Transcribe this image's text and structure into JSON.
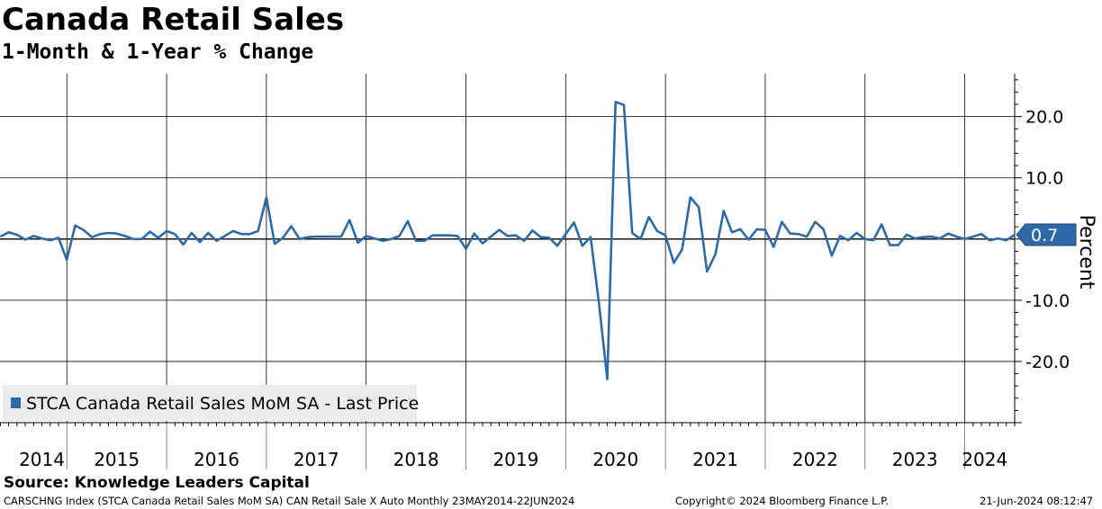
{
  "title": "Canada Retail Sales",
  "subtitle": "1-Month & 1-Year % Change",
  "source": "Source: Knowledge Leaders Capital",
  "footer": {
    "left": "CARSCHNG Index (STCA Canada Retail Sales MoM SA) CAN Retail Sale X Auto  Monthly 23MAY2014-22JUN2024",
    "center": "Copyright© 2024 Bloomberg Finance L.P.",
    "right": "21-Jun-2024 08:12:47"
  },
  "colors": {
    "series": "#2e6aa8",
    "grid": "#000000",
    "legend_bg": "#ececec"
  },
  "chart_data": {
    "type": "line",
    "title": "Canada Retail Sales",
    "subtitle": "1-Month & 1-Year % Change",
    "ylabel": "Percent",
    "ylim": [
      -30,
      27
    ],
    "yticks": [
      20,
      10,
      0,
      -10,
      -20
    ],
    "ytick_labels": [
      "20.0",
      "10.0",
      "",
      "-10.0",
      "-20.0"
    ],
    "xlim": [
      2014.33,
      2024.5
    ],
    "year_labels": [
      "2014",
      "2015",
      "2016",
      "2017",
      "2018",
      "2019",
      "2020",
      "2021",
      "2022",
      "2023",
      "2024"
    ],
    "year_label_x": [
      2014.75,
      2015.5,
      2016.5,
      2017.5,
      2018.5,
      2019.5,
      2020.5,
      2021.5,
      2022.5,
      2023.5,
      2024.2
    ],
    "year_boundaries": [
      2015,
      2016,
      2017,
      2018,
      2019,
      2020,
      2021,
      2022,
      2023,
      2024
    ],
    "legend": "STCA Canada Retail Sales MoM SA - Last Price",
    "last_value": 0.7,
    "last_value_label": "0.7",
    "series": [
      {
        "name": "STCA Canada Retail Sales MoM SA - Last Price",
        "start": "2014-05",
        "values": [
          0.4,
          1.1,
          0.7,
          -0.1,
          0.5,
          0.1,
          -0.2,
          0.2,
          -3.4,
          2.2,
          1.5,
          0.3,
          0.8,
          1.0,
          0.9,
          0.5,
          0.0,
          0.0,
          1.2,
          0.2,
          1.3,
          0.8,
          -0.9,
          1.0,
          -0.5,
          1.0,
          -0.3,
          0.5,
          1.3,
          0.8,
          0.8,
          1.3,
          6.8,
          -0.8,
          0.2,
          2.1,
          0.0,
          0.3,
          0.4,
          0.4,
          0.4,
          0.4,
          3.1,
          -0.6,
          0.5,
          0.1,
          -0.3,
          0.0,
          0.5,
          2.9,
          -0.3,
          -0.3,
          0.6,
          0.6,
          0.6,
          0.5,
          -1.6,
          0.9,
          -0.7,
          0.4,
          1.5,
          0.5,
          0.6,
          -0.3,
          1.4,
          0.3,
          0.2,
          -1.1,
          0.8,
          2.7,
          -1.1,
          0.3,
          -10.5,
          -22.9,
          22.4,
          21.9,
          1.0,
          0.0,
          3.6,
          1.3,
          0.6,
          -3.9,
          -1.7,
          6.8,
          5.2,
          -5.3,
          -2.5,
          4.6,
          1.1,
          1.6,
          -0.1,
          1.6,
          1.5,
          -1.3,
          2.8,
          0.9,
          0.8,
          0.4,
          2.8,
          1.6,
          -2.7,
          0.5,
          -0.2,
          1.0,
          0.0,
          -0.2,
          2.4,
          -1.0,
          -1.0,
          0.7,
          0.1,
          0.3,
          0.4,
          0.1,
          0.9,
          0.4,
          0.0,
          0.4,
          0.8,
          -0.2,
          0.1,
          -0.2,
          0.7
        ]
      }
    ]
  }
}
